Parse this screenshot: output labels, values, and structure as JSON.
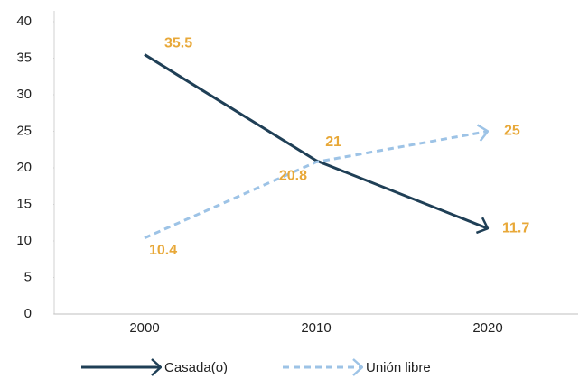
{
  "chart_data": {
    "type": "line",
    "categories": [
      "2000",
      "2010",
      "2020"
    ],
    "series": [
      {
        "name": "Casada(o)",
        "color": "#1f3f56",
        "dashed": false,
        "values": [
          35.5,
          21,
          11.7
        ]
      },
      {
        "name": "Unión libre",
        "color": "#9dc3e6",
        "dashed": true,
        "values": [
          10.4,
          20.8,
          25
        ]
      }
    ],
    "value_label_color": "#e8a838",
    "ylim": [
      0,
      40
    ],
    "yticks": [
      0,
      5,
      10,
      15,
      20,
      25,
      30,
      35,
      40
    ],
    "grid": false,
    "legend": "bottom"
  }
}
